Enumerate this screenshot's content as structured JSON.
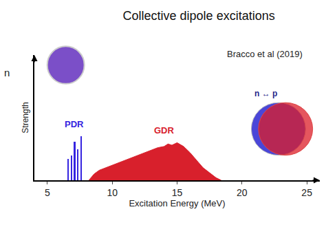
{
  "chart_data": {
    "type": "bar",
    "title": "Collective dipole excitations",
    "x_label": "Excitation Energy (MeV)",
    "y_label": "Strength",
    "xlim": [
      4,
      26
    ],
    "xticks": [
      5,
      10,
      15,
      20,
      25
    ],
    "ylim": [
      0,
      1
    ],
    "yticks": [],
    "tick_labels": "x",
    "grid": false,
    "annotations": [
      "Bracco et al (2019)",
      "n ↔ p",
      "n"
    ],
    "series": [
      {
        "name": "PDR",
        "type": "bar",
        "color": "#3524e0",
        "x": [
          6.6,
          6.85,
          7.1,
          7.35,
          7.6
        ],
        "values": [
          0.17,
          0.2,
          0.31,
          0.25,
          0.35
        ]
      },
      {
        "name": "GDR",
        "type": "area",
        "color": "#d8202c",
        "x": [
          8.2,
          8.6,
          9.0,
          9.5,
          10.0,
          10.5,
          11.0,
          11.5,
          12.0,
          12.5,
          13.0,
          13.5,
          14.0,
          14.3,
          14.6,
          15.0,
          15.5,
          16.0,
          16.5,
          17.0,
          17.5,
          18.0,
          18.4
        ],
        "values": [
          0,
          0.05,
          0.08,
          0.1,
          0.12,
          0.14,
          0.16,
          0.18,
          0.2,
          0.22,
          0.24,
          0.26,
          0.27,
          0.29,
          0.28,
          0.3,
          0.27,
          0.22,
          0.16,
          0.1,
          0.06,
          0.02,
          0
        ]
      }
    ]
  }
}
